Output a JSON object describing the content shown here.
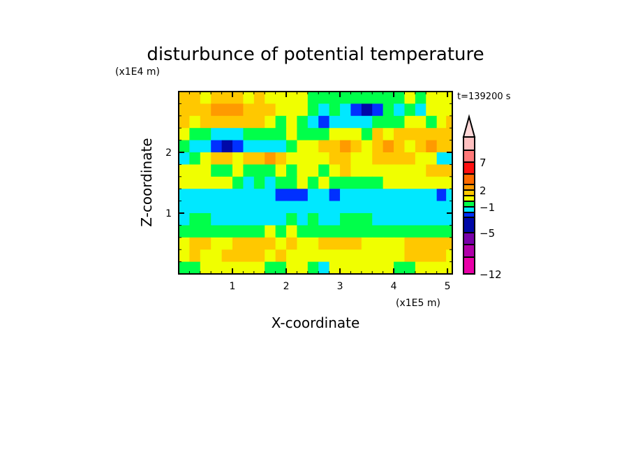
{
  "chart_data": {
    "type": "heatmap",
    "title": "disturbunce of potential temperature",
    "xlabel": "X-coordinate",
    "ylabel": "Z-coordinate",
    "x_unit": "(x1E5 m)",
    "y_unit": "(x1E4 m)",
    "time_label": "t=139200 s",
    "xlim": [
      0,
      5.09
    ],
    "ylim": [
      0,
      3.0
    ],
    "x_ticks": [
      1,
      2,
      3,
      4,
      5
    ],
    "y_ticks": [
      1,
      2
    ],
    "grid": false,
    "colorbar": {
      "levels": [
        -12,
        -9,
        -7,
        -5,
        -3,
        -2,
        -1,
        0,
        1,
        2,
        3,
        5,
        7,
        9,
        12
      ],
      "tick_labels": [
        {
          "value": 7,
          "label": "7"
        },
        {
          "value": 2,
          "label": "2"
        },
        {
          "value": -1,
          "label": "−1"
        },
        {
          "value": -5,
          "label": "−5"
        },
        {
          "value": -12,
          "label": "−12"
        }
      ],
      "colors": [
        "#e800a8",
        "#b000a8",
        "#7800a8",
        "#0008a8",
        "#0030ff",
        "#00e8ff",
        "#00ff4a",
        "#f0ff00",
        "#ffc800",
        "#ff9a00",
        "#ff6a00",
        "#ff1010",
        "#ff7878",
        "#ffc0c0"
      ],
      "over_color": "#ffd8d8",
      "extend": "max"
    },
    "grid_x": [
      0.1,
      0.3,
      0.5,
      0.7,
      0.9,
      1.1,
      1.3,
      1.5,
      1.7,
      1.9,
      2.1,
      2.3,
      2.5,
      2.7,
      2.9,
      3.1,
      3.3,
      3.5,
      3.7,
      3.9,
      4.1,
      4.3,
      4.5,
      4.7,
      4.9,
      5.05
    ],
    "grid_z": [
      2.9,
      2.7,
      2.5,
      2.3,
      2.1,
      1.9,
      1.7,
      1.5,
      1.3,
      1.1,
      0.9,
      0.7,
      0.5,
      0.3,
      0.1
    ],
    "values": [
      [
        1.5,
        1.5,
        0.5,
        1.5,
        1.5,
        1.5,
        0.5,
        1.5,
        0.5,
        0.5,
        0.5,
        0.5,
        -0.5,
        -0.5,
        -0.5,
        -0.5,
        -0.5,
        -0.5,
        -0.5,
        -0.5,
        -0.5,
        0.5,
        -0.5,
        0.5,
        0.5,
        0.5
      ],
      [
        1.5,
        1.5,
        1.5,
        2.5,
        2.5,
        2.5,
        1.5,
        1.5,
        1.5,
        0.5,
        0.5,
        0.5,
        -0.5,
        -1.5,
        -0.5,
        -1.5,
        -2.5,
        -4,
        -2.5,
        -0.5,
        -1.5,
        -0.5,
        -1.5,
        0.5,
        0.5,
        0.5
      ],
      [
        1.5,
        0.5,
        1.5,
        1.5,
        1.5,
        1.5,
        1.5,
        1.5,
        0.5,
        -0.5,
        0.5,
        -0.5,
        -1.5,
        -2.5,
        -1.5,
        -1.5,
        -1.5,
        -1.5,
        -0.5,
        -0.5,
        -0.5,
        0.5,
        0.5,
        -0.5,
        0.5,
        1.5
      ],
      [
        0.5,
        -0.5,
        -0.5,
        -1.5,
        -1.5,
        -1.5,
        -0.5,
        -0.5,
        -0.5,
        -0.5,
        0.5,
        -0.5,
        -0.5,
        -0.5,
        0.5,
        0.5,
        0.5,
        -0.5,
        1.5,
        0.5,
        1.5,
        1.5,
        1.5,
        1.5,
        1.5,
        1.5
      ],
      [
        -0.5,
        -1.5,
        -1.5,
        -2.5,
        -4,
        -2.5,
        -1.5,
        -1.5,
        -1.5,
        -1.5,
        -0.5,
        0.5,
        0.5,
        1.5,
        1.5,
        2.5,
        1.5,
        0.5,
        1.5,
        2.5,
        1.5,
        0.5,
        1.5,
        2.5,
        1.5,
        1.5
      ],
      [
        -1.5,
        -0.5,
        0.5,
        1.5,
        1.5,
        0.5,
        1.5,
        1.5,
        2.5,
        1.5,
        0.5,
        0.5,
        0.5,
        0.5,
        1.5,
        1.5,
        0.5,
        0.5,
        1.5,
        1.5,
        1.5,
        1.5,
        0.5,
        0.5,
        -1.5,
        -1.5
      ],
      [
        0.5,
        0.5,
        0.5,
        -0.5,
        -0.5,
        0.5,
        -0.5,
        -0.5,
        -0.5,
        0.5,
        -0.5,
        0.5,
        0.5,
        -0.5,
        0.5,
        1.5,
        0.5,
        0.5,
        0.5,
        0.5,
        0.5,
        0.5,
        0.5,
        1.5,
        1.5,
        1.5
      ],
      [
        0.5,
        0.5,
        0.5,
        0.5,
        0.5,
        -0.5,
        -1.5,
        -0.5,
        -1.5,
        -0.5,
        -0.5,
        0.5,
        -0.5,
        0.5,
        -0.5,
        -0.5,
        -0.5,
        -0.5,
        -0.5,
        0.5,
        0.5,
        0.5,
        0.5,
        0.5,
        0.5,
        0.5
      ],
      [
        -1.5,
        -1.5,
        -1.5,
        -1.5,
        -1.5,
        -1.5,
        -1.5,
        -1.5,
        -1.5,
        -2.5,
        -2.5,
        -2.5,
        -1.5,
        -1.5,
        -2.5,
        -1.5,
        -1.5,
        -1.5,
        -1.5,
        -1.5,
        -1.5,
        -1.5,
        -1.5,
        -1.5,
        -2.5,
        -1.5
      ],
      [
        -1.5,
        -1.5,
        -1.5,
        -1.5,
        -1.5,
        -1.5,
        -1.5,
        -1.5,
        -1.5,
        -1.5,
        -1.5,
        -1.5,
        -1.5,
        -1.5,
        -1.5,
        -1.5,
        -1.5,
        -1.5,
        -1.5,
        -1.5,
        -1.5,
        -1.5,
        -1.5,
        -1.5,
        -1.5,
        -1.5
      ],
      [
        -1.5,
        -0.5,
        -0.5,
        -1.5,
        -1.5,
        -1.5,
        -1.5,
        -1.5,
        -1.5,
        -1.5,
        -0.5,
        -1.5,
        -0.5,
        -1.5,
        -1.5,
        -0.5,
        -0.5,
        -0.5,
        -1.5,
        -1.5,
        -1.5,
        -1.5,
        -1.5,
        -1.5,
        -1.5,
        -1.5
      ],
      [
        -0.5,
        -0.5,
        -0.5,
        -0.5,
        -0.5,
        -0.5,
        -0.5,
        -0.5,
        0.5,
        -0.5,
        0.5,
        -0.5,
        -0.5,
        -0.5,
        -0.5,
        -0.5,
        -0.5,
        -0.5,
        -0.5,
        -0.5,
        -0.5,
        -0.5,
        -0.5,
        -0.5,
        -0.5,
        -0.5
      ],
      [
        0.5,
        1.5,
        1.5,
        0.5,
        0.5,
        1.5,
        1.5,
        1.5,
        1.5,
        0.5,
        1.5,
        0.5,
        0.5,
        1.5,
        1.5,
        1.5,
        1.5,
        0.5,
        0.5,
        0.5,
        0.5,
        1.5,
        1.5,
        1.5,
        1.5,
        1.5
      ],
      [
        0.5,
        1.5,
        0.5,
        0.5,
        1.5,
        1.5,
        1.5,
        1.5,
        0.5,
        1.5,
        0.5,
        0.5,
        0.5,
        0.5,
        0.5,
        0.5,
        0.5,
        0.5,
        0.5,
        0.5,
        0.5,
        1.5,
        1.5,
        1.5,
        1.5,
        0.5
      ],
      [
        -0.5,
        -0.5,
        0.5,
        0.5,
        0.5,
        0.5,
        0.5,
        0.5,
        -0.5,
        -0.5,
        0.5,
        0.5,
        -0.5,
        -1.5,
        0.5,
        0.5,
        0.5,
        0.5,
        0.5,
        0.5,
        -0.5,
        -0.5,
        0.5,
        0.5,
        0.5,
        0.5
      ]
    ]
  }
}
